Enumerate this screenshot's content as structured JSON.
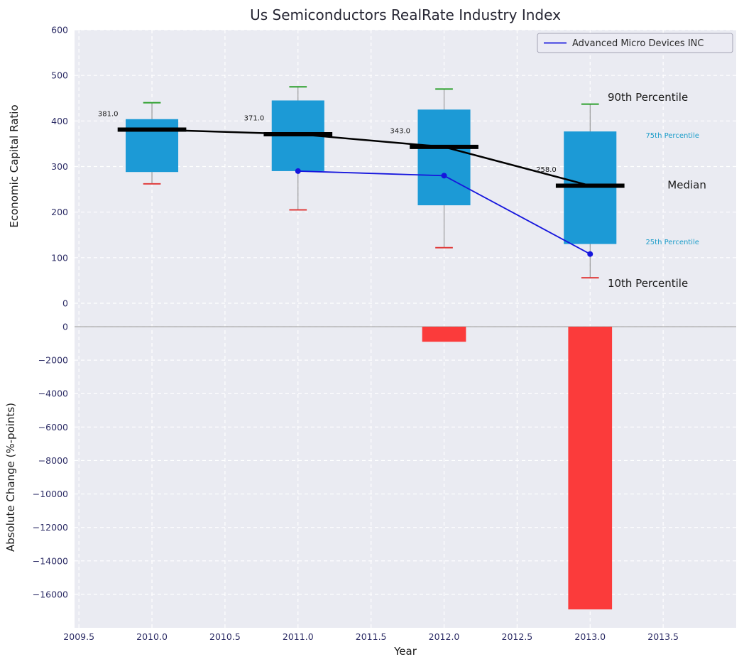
{
  "title": "Us Semiconductors RealRate Industry Index",
  "legend": {
    "label": "Advanced Micro Devices INC"
  },
  "chart_data": {
    "type": "boxplot+line+bar",
    "xlabel": "Year",
    "xlim": [
      2009.47,
      2014.0
    ],
    "xticks": [
      2009.5,
      2010.0,
      2010.5,
      2011.0,
      2011.5,
      2012.0,
      2012.5,
      2013.0,
      2013.5
    ],
    "top": {
      "ylabel": "Economic Capital Ratio",
      "ylim": [
        0,
        600
      ],
      "yticks": [
        0,
        100,
        200,
        300,
        400,
        500,
        600
      ],
      "boxes": [
        {
          "year": 2010,
          "q10": 262,
          "q25": 288,
          "median": 381,
          "q75": 404,
          "q90": 440,
          "median_label": "381.0"
        },
        {
          "year": 2011,
          "q10": 205,
          "q25": 290,
          "median": 371,
          "q75": 445,
          "q90": 475,
          "median_label": "371.0"
        },
        {
          "year": 2012,
          "q10": 122,
          "q25": 215,
          "median": 343,
          "q75": 425,
          "q90": 470,
          "median_label": "343.0"
        },
        {
          "year": 2013,
          "q10": 56,
          "q25": 130,
          "median": 258,
          "q75": 377,
          "q90": 437,
          "median_label": "258.0"
        }
      ],
      "company_line": {
        "name": "Advanced Micro Devices INC",
        "x": [
          2011,
          2012,
          2013
        ],
        "y": [
          290,
          280,
          108
        ]
      },
      "annotations": [
        {
          "text": "90th Percentile",
          "x": 2013.12,
          "y": 444,
          "color": "#1a1a1a",
          "size": 15
        },
        {
          "text": "75th Percentile",
          "x": 2013.38,
          "y": 363,
          "color": "#1a9cc9",
          "size": 10
        },
        {
          "text": "Median",
          "x": 2013.53,
          "y": 252,
          "color": "#1a1a1a",
          "size": 15
        },
        {
          "text": "25th Percentile",
          "x": 2013.38,
          "y": 129,
          "color": "#1a9cc9",
          "size": 10
        },
        {
          "text": "10th Percentile",
          "x": 2013.12,
          "y": 36,
          "color": "#1a1a1a",
          "size": 15
        }
      ]
    },
    "bottom": {
      "ylabel": "Absolute Change (%-points)",
      "ylim": [
        -18000,
        0
      ],
      "yticks": [
        0,
        -2000,
        -4000,
        -6000,
        -8000,
        -10000,
        -12000,
        -14000,
        -16000
      ],
      "bars": [
        {
          "year": 2012,
          "value": -900
        },
        {
          "year": 2013,
          "value": -16900
        }
      ]
    },
    "colors": {
      "background": "#eaebf2",
      "grid": "#ffffff",
      "box": "#1c9ad6",
      "median": "#000000",
      "company_line": "#1616dd",
      "cap_high": "#2ca02c",
      "cap_low": "#e03c3c",
      "whisker": "#888888",
      "bar": "#fb3b3b",
      "tick_text": "#2d2d66",
      "zero_line": "#aaaaaa"
    }
  }
}
